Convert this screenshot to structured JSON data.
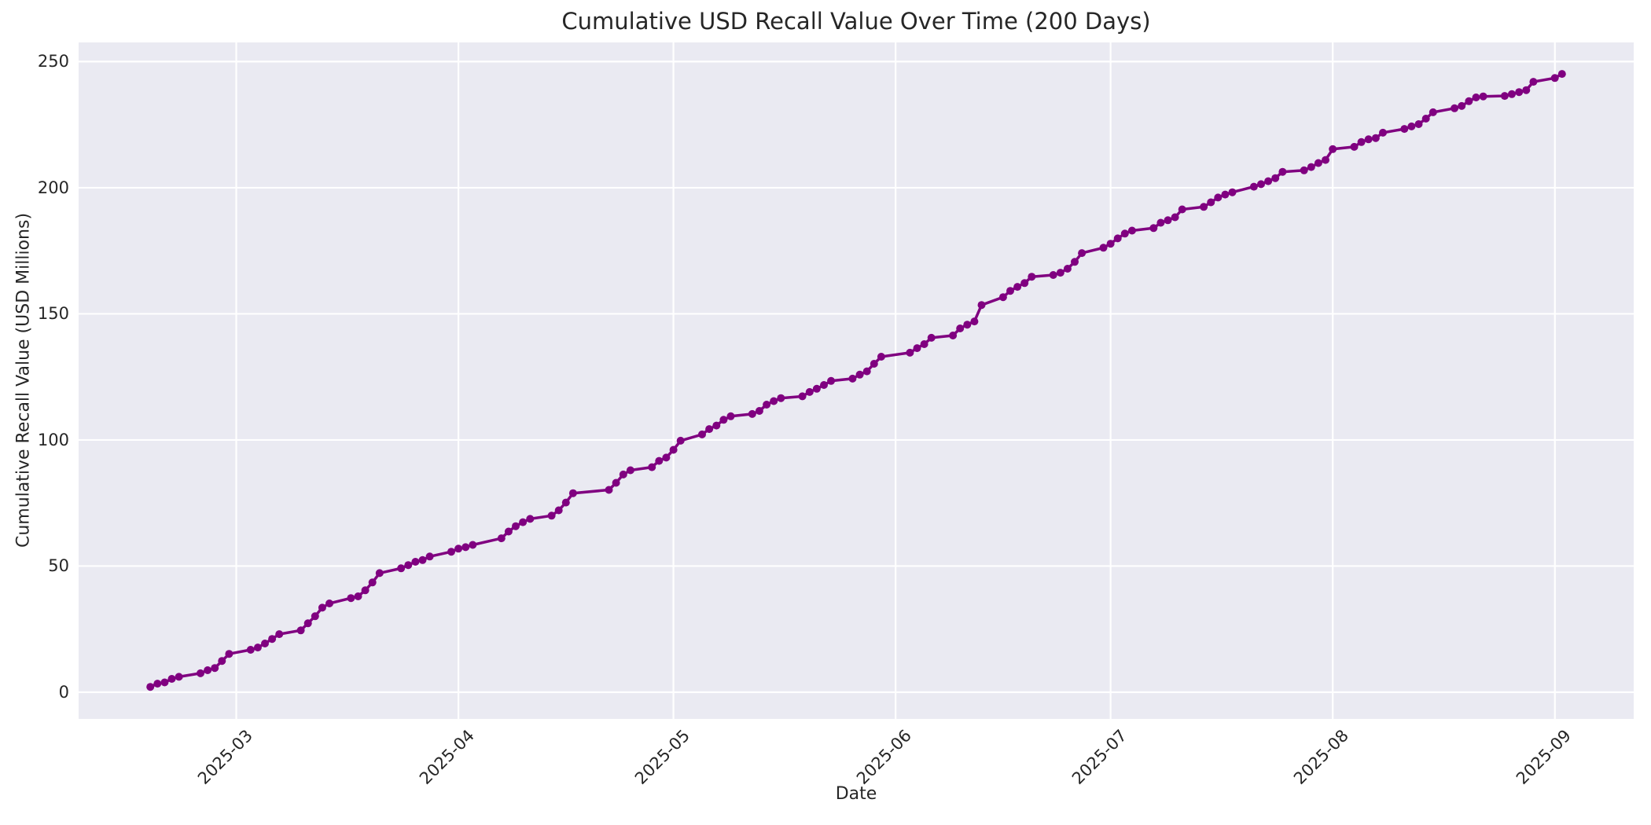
{
  "chart_data": {
    "type": "line",
    "title": "Cumulative USD Recall Value Over Time (200 Days)",
    "xlabel": "Date",
    "ylabel": "Cumulative Recall Value (USD Millions)",
    "legend_position": "none",
    "grid": true,
    "plot_background": "#EAEAF2",
    "grid_color": "#FFFFFF",
    "line_color": "#800080",
    "marker": "circle",
    "text_color": "#262626",
    "ylim": [
      -10.6,
      257.6
    ],
    "xlim": [
      "2025-02-07",
      "2025-09-12"
    ],
    "y_ticks": [
      0,
      50,
      100,
      150,
      200,
      250
    ],
    "x_ticks": [
      {
        "date": "2025-03-01",
        "label": "2025-03"
      },
      {
        "date": "2025-04-01",
        "label": "2025-04"
      },
      {
        "date": "2025-05-01",
        "label": "2025-05"
      },
      {
        "date": "2025-06-01",
        "label": "2025-06"
      },
      {
        "date": "2025-07-01",
        "label": "2025-07"
      },
      {
        "date": "2025-08-01",
        "label": "2025-08"
      },
      {
        "date": "2025-09-01",
        "label": "2025-09"
      }
    ],
    "series": [
      {
        "name": "Cumulative Recall Value",
        "dates": [
          "2025-02-17",
          "2025-02-18",
          "2025-02-19",
          "2025-02-20",
          "2025-02-21",
          "2025-02-24",
          "2025-02-25",
          "2025-02-26",
          "2025-02-27",
          "2025-02-28",
          "2025-03-03",
          "2025-03-04",
          "2025-03-05",
          "2025-03-06",
          "2025-03-07",
          "2025-03-10",
          "2025-03-11",
          "2025-03-12",
          "2025-03-13",
          "2025-03-14",
          "2025-03-17",
          "2025-03-18",
          "2025-03-19",
          "2025-03-20",
          "2025-03-21",
          "2025-03-24",
          "2025-03-25",
          "2025-03-26",
          "2025-03-27",
          "2025-03-28",
          "2025-03-31",
          "2025-04-01",
          "2025-04-02",
          "2025-04-03",
          "2025-04-07",
          "2025-04-08",
          "2025-04-09",
          "2025-04-10",
          "2025-04-11",
          "2025-04-14",
          "2025-04-15",
          "2025-04-16",
          "2025-04-17",
          "2025-04-22",
          "2025-04-23",
          "2025-04-24",
          "2025-04-25",
          "2025-04-28",
          "2025-04-29",
          "2025-04-30",
          "2025-05-01",
          "2025-05-02",
          "2025-05-05",
          "2025-05-06",
          "2025-05-07",
          "2025-05-08",
          "2025-05-09",
          "2025-05-12",
          "2025-05-13",
          "2025-05-14",
          "2025-05-15",
          "2025-05-16",
          "2025-05-19",
          "2025-05-20",
          "2025-05-21",
          "2025-05-22",
          "2025-05-23",
          "2025-05-26",
          "2025-05-27",
          "2025-05-28",
          "2025-05-29",
          "2025-05-30",
          "2025-06-03",
          "2025-06-04",
          "2025-06-05",
          "2025-06-06",
          "2025-06-09",
          "2025-06-10",
          "2025-06-11",
          "2025-06-12",
          "2025-06-13",
          "2025-06-16",
          "2025-06-17",
          "2025-06-18",
          "2025-06-19",
          "2025-06-20",
          "2025-06-23",
          "2025-06-24",
          "2025-06-25",
          "2025-06-26",
          "2025-06-27",
          "2025-06-30",
          "2025-07-01",
          "2025-07-02",
          "2025-07-03",
          "2025-07-04",
          "2025-07-07",
          "2025-07-08",
          "2025-07-09",
          "2025-07-10",
          "2025-07-11",
          "2025-07-14",
          "2025-07-15",
          "2025-07-16",
          "2025-07-17",
          "2025-07-18",
          "2025-07-21",
          "2025-07-22",
          "2025-07-23",
          "2025-07-24",
          "2025-07-25",
          "2025-07-28",
          "2025-07-29",
          "2025-07-30",
          "2025-07-31",
          "2025-08-01",
          "2025-08-04",
          "2025-08-05",
          "2025-08-06",
          "2025-08-07",
          "2025-08-08",
          "2025-08-11",
          "2025-08-12",
          "2025-08-13",
          "2025-08-14",
          "2025-08-15",
          "2025-08-18",
          "2025-08-19",
          "2025-08-20",
          "2025-08-21",
          "2025-08-22",
          "2025-08-25",
          "2025-08-26",
          "2025-08-27",
          "2025-08-28",
          "2025-08-29",
          "2025-09-01",
          "2025-09-02"
        ],
        "values": [
          2.1,
          3.4,
          3.9,
          5.3,
          6.1,
          7.5,
          8.7,
          9.6,
          12.4,
          15.2,
          16.8,
          17.7,
          19.3,
          21.1,
          23.0,
          24.5,
          27.3,
          30.1,
          33.5,
          35.2,
          37.3,
          38.0,
          40.4,
          43.5,
          47.2,
          49.1,
          50.4,
          51.7,
          52.4,
          53.8,
          55.7,
          56.9,
          57.5,
          58.4,
          61.0,
          63.7,
          65.8,
          67.4,
          68.7,
          70.0,
          72.1,
          75.2,
          78.9,
          80.2,
          83.0,
          86.3,
          88.0,
          89.2,
          91.7,
          93.0,
          96.1,
          99.7,
          102.2,
          104.3,
          105.7,
          108.0,
          109.4,
          110.3,
          111.5,
          114.0,
          115.4,
          116.6,
          117.3,
          119.0,
          120.3,
          121.8,
          123.4,
          124.3,
          125.9,
          127.2,
          130.2,
          133.0,
          134.6,
          136.4,
          138.0,
          140.5,
          141.4,
          144.2,
          145.7,
          147.0,
          153.5,
          156.6,
          159.1,
          160.7,
          162.2,
          164.7,
          165.4,
          166.3,
          167.9,
          170.6,
          174.1,
          176.2,
          177.8,
          179.9,
          181.8,
          183.0,
          184.0,
          186.1,
          187.1,
          188.3,
          191.4,
          192.4,
          194.2,
          196.1,
          197.3,
          198.2,
          200.4,
          201.4,
          202.6,
          203.8,
          206.3,
          206.9,
          208.2,
          209.8,
          211.0,
          215.3,
          216.2,
          218.1,
          219.2,
          219.7,
          221.8,
          223.3,
          224.3,
          225.2,
          227.4,
          229.9,
          231.5,
          232.4,
          234.3,
          235.8,
          236.2,
          236.4,
          237.1,
          237.9,
          238.7,
          242.0,
          243.5,
          245.1
        ]
      }
    ]
  }
}
